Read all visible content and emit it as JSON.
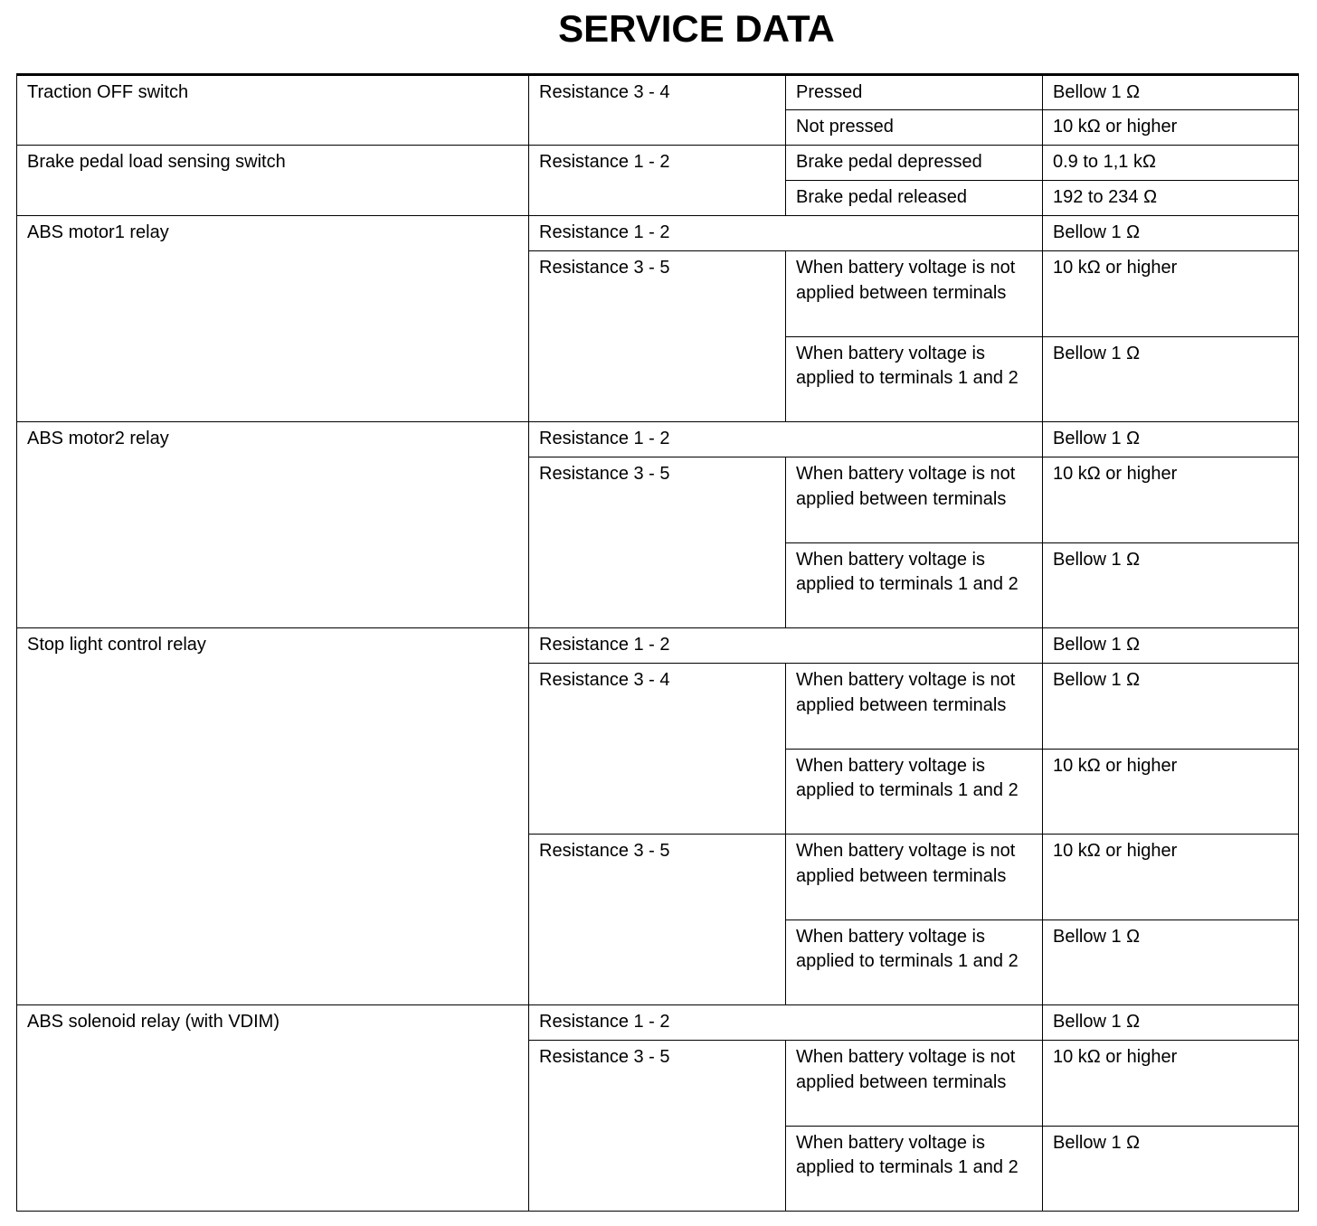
{
  "title": "SERVICE DATA",
  "rows": {
    "traction": {
      "component": "Traction OFF switch",
      "terminal": "Resistance 3 - 4",
      "c1": "Pressed",
      "v1": "Bellow 1 Ω",
      "c2": "Not pressed",
      "v2": "10 kΩ or higher"
    },
    "brake": {
      "component": "Brake pedal load sensing switch",
      "terminal": "Resistance 1 - 2",
      "c1": "Brake pedal depressed",
      "v1": "0.9 to 1,1 kΩ",
      "c2": "Brake pedal released",
      "v2": "192 to 234 Ω"
    },
    "motor1": {
      "component": "ABS motor1 relay",
      "t1": "Resistance 1 - 2",
      "t1v": "Bellow 1 Ω",
      "t2": "Resistance 3 - 5",
      "c1": "When battery voltage is not applied between terminals",
      "v1": "10 kΩ or higher",
      "c2": "When battery voltage is applied to terminals 1 and 2",
      "v2": "Bellow 1 Ω"
    },
    "motor2": {
      "component": "ABS motor2 relay",
      "t1": "Resistance 1 - 2",
      "t1v": "Bellow 1 Ω",
      "t2": "Resistance 3 - 5",
      "c1": "When battery voltage is not applied between terminals",
      "v1": "10 kΩ or higher",
      "c2": "When battery voltage is applied to terminals 1 and 2",
      "v2": "Bellow 1 Ω"
    },
    "stop": {
      "component": "Stop light control relay",
      "t1": "Resistance 1 - 2",
      "t1v": "Bellow 1 Ω",
      "t2": "Resistance 3 - 4",
      "c1": "When battery voltage is not applied between terminals",
      "v1": "Bellow 1 Ω",
      "c2": "When battery voltage is applied to terminals 1 and 2",
      "v2": "10 kΩ or higher",
      "t3": "Resistance 3 - 5",
      "c3": "When battery voltage is not applied between terminals",
      "v3": "10 kΩ or higher",
      "c4": "When battery voltage is applied to terminals 1 and 2",
      "v4": "Bellow 1 Ω"
    },
    "solenoid": {
      "component": "ABS solenoid relay (with VDIM)",
      "t1": "Resistance 1 - 2",
      "t1v": "Bellow 1 Ω",
      "t2": "Resistance 3 - 5",
      "c1": "When battery voltage is not applied between terminals",
      "v1": "10 kΩ or higher",
      "c2": "When battery voltage is applied to terminals 1 and 2",
      "v2": "Bellow 1 Ω"
    }
  }
}
